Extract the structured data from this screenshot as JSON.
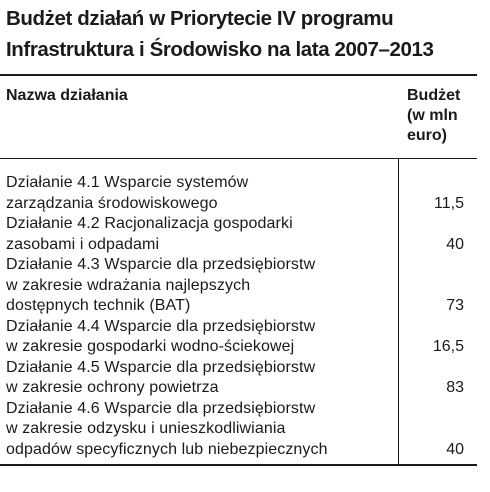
{
  "title": {
    "line1": "Budżet działań w Priorytecie IV programu",
    "line2": "Infrastruktura i Środowisko na lata 2007–2013"
  },
  "table": {
    "header": {
      "name": "Nazwa działania",
      "budget_lines": [
        "Budżet",
        "(w mln",
        "euro)"
      ]
    },
    "rows": [
      {
        "name_lines": [
          "Działanie 4.1 Wsparcie systemów",
          "zarządzania środowiskowego"
        ],
        "value": "11,5"
      },
      {
        "name_lines": [
          "Działanie 4.2 Racjonalizacja gospodarki",
          "zasobami i odpadami"
        ],
        "value": "40"
      },
      {
        "name_lines": [
          "Działanie 4.3 Wsparcie dla przedsiębiorstw",
          "w zakresie wdrażania najlepszych",
          "dostępnych technik (BAT)"
        ],
        "value": "73"
      },
      {
        "name_lines": [
          "Działanie 4.4 Wsparcie dla przedsiębiorstw",
          "w zakresie gospodarki wodno-ściekowej"
        ],
        "value": "16,5"
      },
      {
        "name_lines": [
          "Działanie 4.5 Wsparcie dla przedsiębiorstw",
          "w zakresie ochrony powietrza"
        ],
        "value": "83"
      },
      {
        "name_lines": [
          "Działanie 4.6 Wsparcie dla przedsiębiorstw",
          "w zakresie odzysku i unieszkodliwiania",
          "odpadów specyficznych lub niebezpiecznych"
        ],
        "value": "40"
      }
    ]
  }
}
